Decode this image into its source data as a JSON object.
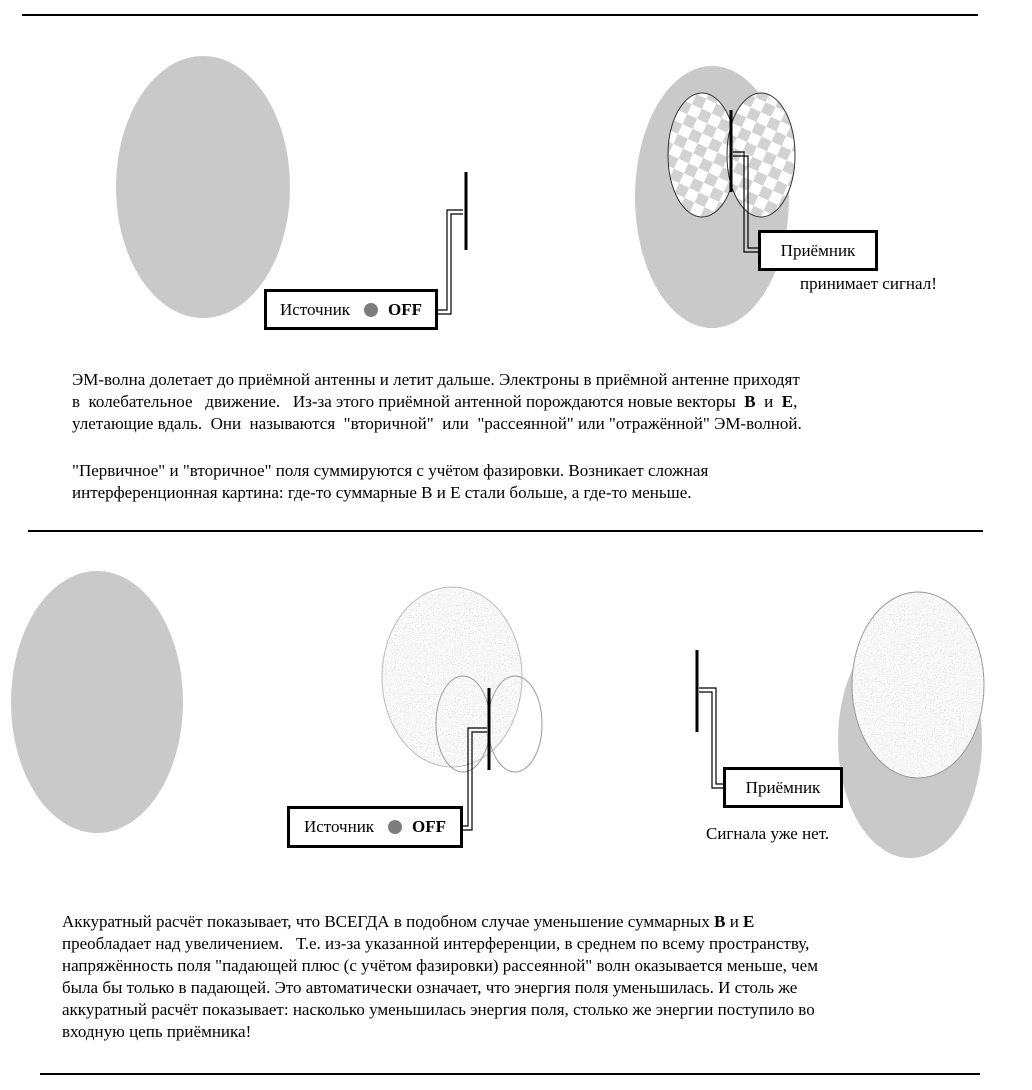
{
  "panel1": {
    "source": {
      "label": "Источник",
      "state": "OFF"
    },
    "receiver": {
      "label": "Приёмник",
      "note": "принимает сигнал!"
    },
    "text": {
      "p1_line1": "ЭМ-волна долетает до приёмной антенны и летит дальше. Электроны в приёмной антенне приходят",
      "p1_line2_a": "в  колебательное   движение.   Из-за этого приёмной антенной порождаются новые векторы  ",
      "p1_line2_b": "B",
      "p1_line2_c": "  и  ",
      "p1_line2_d": "E",
      "p1_line2_e": ",",
      "p1_line3": "улетающие вдаль.  Они  называются  \"вторичной\"  или  \"рассеянной\" или \"отражённой\" ЭМ-волной.",
      "p2_line1": "\"Первичное\" и \"вторичное\" поля суммируются с учётом фазировки. Возникает сложная",
      "p2_line2": "интерференционная картина: где-то суммарные B и E стали больше, а где-то меньше."
    }
  },
  "panel2": {
    "source": {
      "label": "Источник",
      "state": "OFF"
    },
    "receiver": {
      "label": "Приёмник",
      "note": "Сигнала уже нет."
    },
    "text": {
      "line1_a": "Аккуратный расчёт показывает, что ВСЕГДА в подобном случае уменьшение суммарных ",
      "line1_b": "B",
      "line1_c": " и ",
      "line1_d": "E",
      "line2": "преобладает над увеличением.   Т.е. из-за указанной интерференции, в среднем по всему пространству,",
      "line3": "напряжённость поля \"падающей плюс (с учётом фазировки) рассеянной\" волн оказывается меньше, чем",
      "line4": "была бы только в падающей. Это автоматически означает, что энергия поля уменьшилась. И столь же",
      "line5": "аккуратный расчёт показывает: насколько уменьшилась энергия поля, столько же энергии поступило во",
      "line6": "входную цепь приёмника!"
    }
  },
  "colors": {
    "field_gray": "#c9c9c9",
    "dot_gray": "#7d7d7d"
  }
}
